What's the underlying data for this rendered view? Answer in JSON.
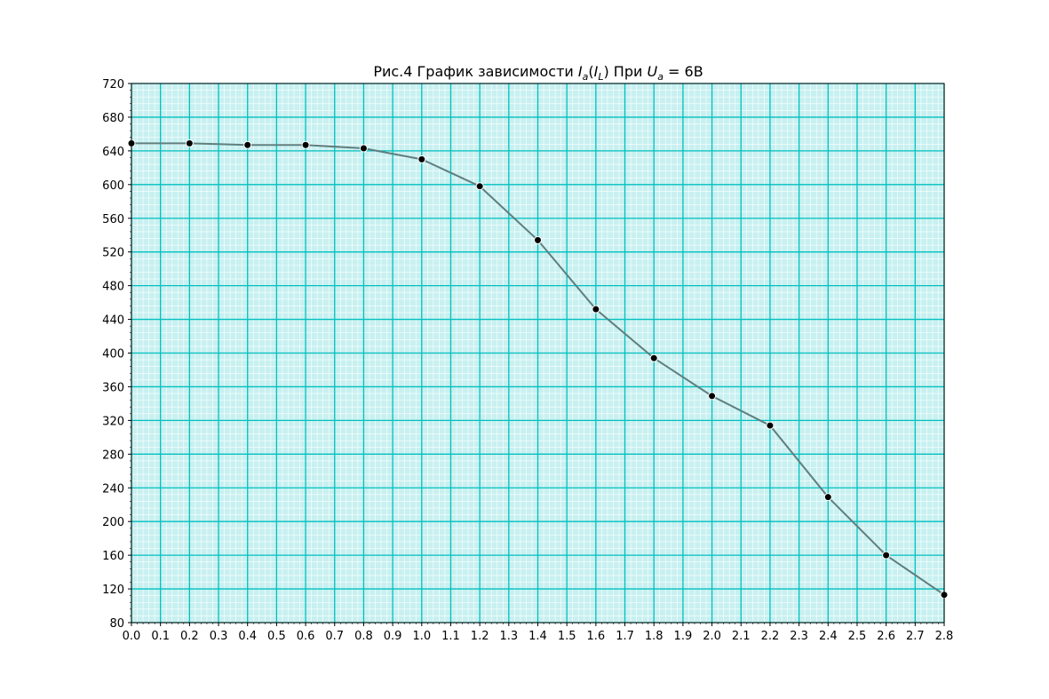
{
  "chart_data": {
    "type": "line",
    "title": {
      "prefix": "Рис.4 График зависимости ",
      "y_var": "I",
      "y_sub": "a",
      "x_var": "I",
      "x_sub": "L",
      "mid": " При ",
      "u_var": "U",
      "u_sub": "a",
      "suffix": " = 6В"
    },
    "xlabel": "",
    "ylabel": "",
    "xlim": [
      0.0,
      2.8
    ],
    "ylim": [
      80,
      720
    ],
    "x_ticks": [
      "0.0",
      "0.1",
      "0.2",
      "0.3",
      "0.4",
      "0.5",
      "0.6",
      "0.7",
      "0.8",
      "0.9",
      "1.0",
      "1.1",
      "1.2",
      "1.3",
      "1.4",
      "1.5",
      "1.6",
      "1.7",
      "1.8",
      "1.9",
      "2.0",
      "2.1",
      "2.2",
      "2.3",
      "2.4",
      "2.5",
      "2.6",
      "2.7",
      "2.8"
    ],
    "y_ticks": [
      "80",
      "120",
      "160",
      "200",
      "240",
      "280",
      "320",
      "360",
      "400",
      "440",
      "480",
      "520",
      "560",
      "600",
      "640",
      "680",
      "720"
    ],
    "grid": true,
    "colors": {
      "background": "#c8f0f0",
      "major_grid": "#00c0c0",
      "minor_grid": "#ffffff",
      "line": "#5f7f7f",
      "marker": "#000000",
      "marker_edge": "#ffffff"
    },
    "series": [
      {
        "x": [
          0.0,
          0.2,
          0.4,
          0.6,
          0.8,
          1.0,
          1.2,
          1.4,
          1.6,
          1.8,
          2.0,
          2.2,
          2.4,
          2.6,
          2.8
        ],
        "y": [
          649,
          649,
          647,
          647,
          643,
          630,
          598,
          534,
          452,
          394,
          349,
          314,
          229,
          160,
          113
        ]
      }
    ]
  }
}
